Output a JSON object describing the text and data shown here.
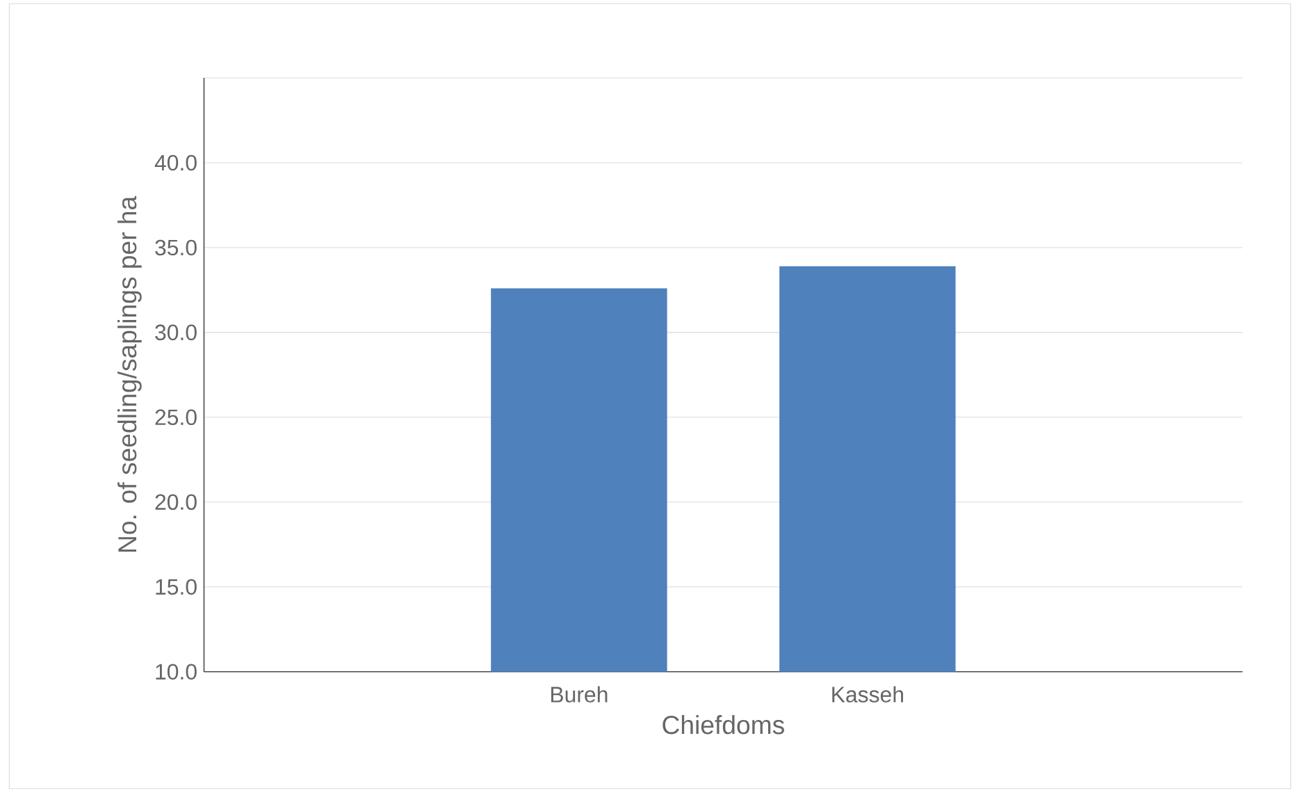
{
  "chart_data": {
    "type": "bar",
    "xlabel": "Chiefdoms",
    "ylabel": "No. of seedling/saplings per ha",
    "categories": [
      "Bureh",
      "Kasseh"
    ],
    "values": [
      32.6,
      33.9
    ],
    "color": "#4f81bd",
    "ylim": [
      10,
      45
    ],
    "yticks": [
      {
        "value": 10,
        "label": "10.0"
      },
      {
        "value": 15,
        "label": "15.0"
      },
      {
        "value": 20,
        "label": "20.0"
      },
      {
        "value": 25,
        "label": "25.0"
      },
      {
        "value": 30,
        "label": "30.0"
      },
      {
        "value": 35,
        "label": "35.0"
      },
      {
        "value": 40,
        "label": "40.0"
      },
      {
        "value": 45,
        "label": null
      }
    ],
    "grid": "y"
  }
}
